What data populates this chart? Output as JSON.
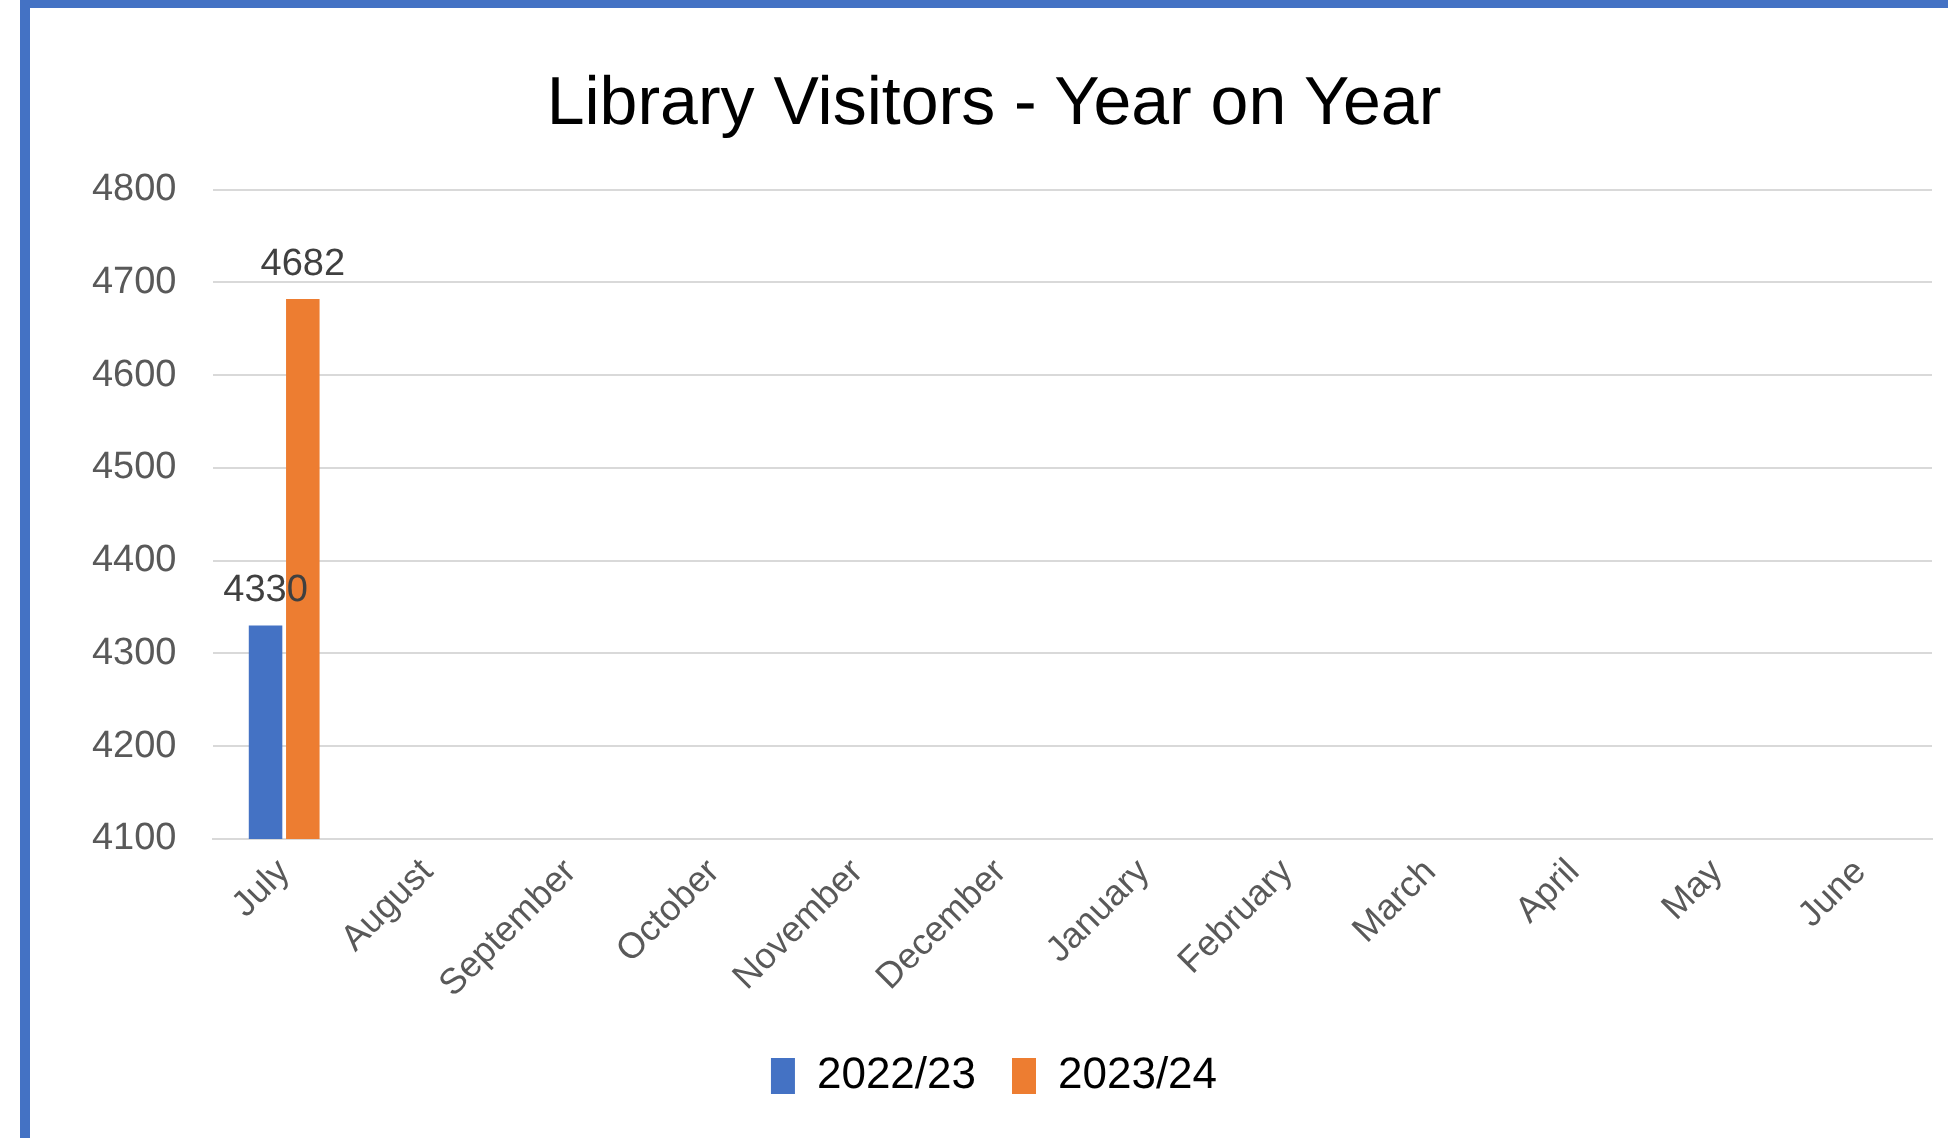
{
  "chart_data": {
    "type": "bar",
    "title": "Library Visitors - Year on Year",
    "categories": [
      "July",
      "August",
      "September",
      "October",
      "November",
      "December",
      "January",
      "February",
      "March",
      "April",
      "May",
      "June"
    ],
    "series": [
      {
        "name": "2022/23",
        "color": "#4472c4",
        "values": [
          4330,
          null,
          null,
          null,
          null,
          null,
          null,
          null,
          null,
          null,
          null,
          null
        ]
      },
      {
        "name": "2023/24",
        "color": "#ed7d31",
        "values": [
          4682,
          null,
          null,
          null,
          null,
          null,
          null,
          null,
          null,
          null,
          null,
          null
        ]
      }
    ],
    "ylim": [
      4100,
      4800
    ],
    "yticks": [
      4100,
      4200,
      4300,
      4400,
      4500,
      4600,
      4700,
      4800
    ],
    "grid": "y",
    "legend": "bottom",
    "data_labels": true
  }
}
